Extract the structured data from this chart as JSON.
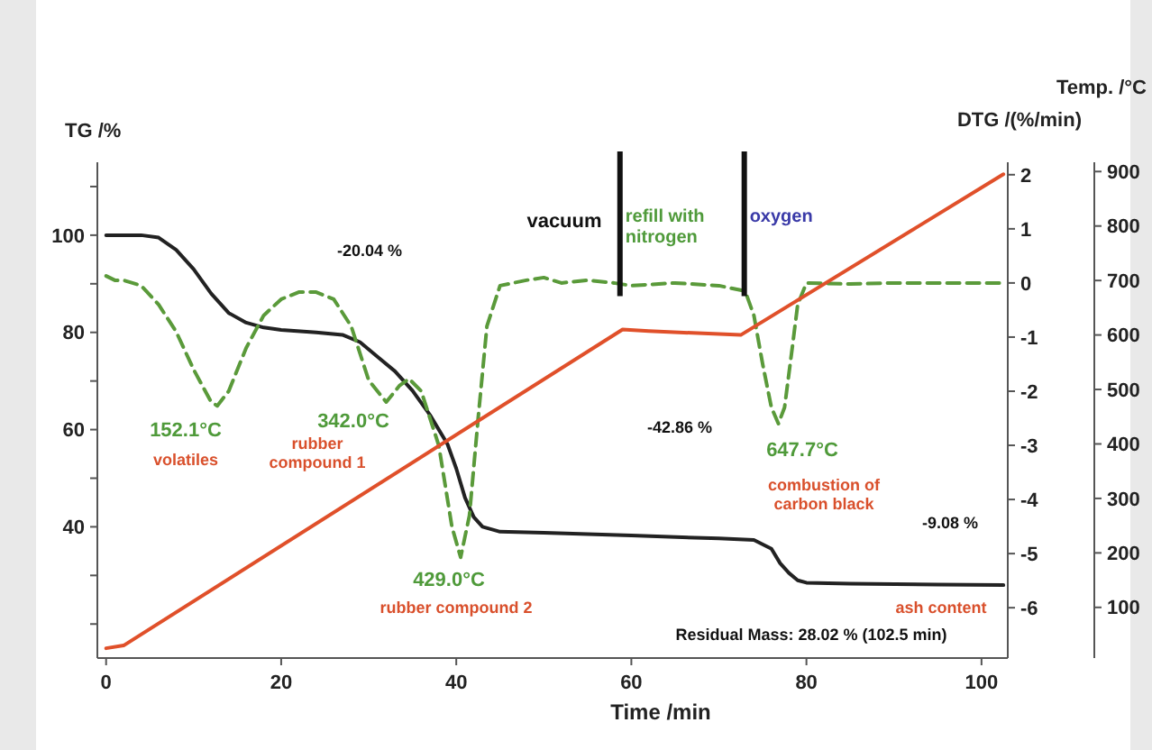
{
  "chart_data": {
    "type": "line",
    "xlabel": "Time /min",
    "ylabel": "TG /%",
    "y2label": "DTG /(%/min)",
    "y3label": "Temp. /°C",
    "xlim": [
      -1,
      103
    ],
    "xticks": [
      0,
      20,
      40,
      60,
      80,
      100
    ],
    "ylim": [
      13,
      115
    ],
    "yticks": [
      {
        "value": 20,
        "label": null
      },
      {
        "value": 30,
        "label": null
      },
      40,
      {
        "value": 50,
        "label": null
      },
      60,
      {
        "value": 70,
        "label": null
      },
      80,
      {
        "value": 90,
        "label": null
      },
      100,
      {
        "value": 110,
        "label": null
      }
    ],
    "y2lim": [
      -6.93,
      2.23
    ],
    "y2ticks": [
      -6,
      -5,
      -4,
      -3,
      -2,
      -1,
      0,
      1,
      2
    ],
    "y3lim": [
      7,
      917
    ],
    "y3ticks": [
      100,
      200,
      300,
      400,
      500,
      600,
      700,
      800,
      900
    ],
    "grid": false,
    "marker": "none",
    "series": [
      {
        "color": "#222222",
        "line_style": "solid",
        "x": [
          0,
          4,
          6,
          8,
          10,
          12,
          14,
          16,
          18,
          20,
          24,
          27,
          29,
          31,
          33,
          35,
          37,
          39,
          40,
          41,
          42,
          43,
          45,
          50,
          60,
          70,
          74,
          76,
          77,
          78,
          79,
          80,
          85,
          95,
          102.5
        ],
        "values": [
          100,
          100,
          99.5,
          97,
          93,
          88,
          84,
          82,
          81,
          80.5,
          80,
          79.5,
          78,
          75,
          72,
          68,
          63,
          57,
          52,
          46,
          42,
          40,
          39,
          38.8,
          38.2,
          37.6,
          37.3,
          35.5,
          32.5,
          30.5,
          29,
          28.5,
          28.3,
          28.1,
          28
        ]
      },
      {
        "color": "#5a9a3a",
        "line_style": "dashed",
        "axis": "y2",
        "x": [
          0,
          1,
          2,
          4,
          6,
          8,
          10,
          12,
          12.7,
          14,
          16,
          18,
          20,
          22,
          24,
          26,
          28,
          30,
          32,
          33.5,
          34.6,
          36,
          38,
          39.5,
          40.5,
          41.5,
          42.5,
          43.5,
          45,
          48,
          50,
          52,
          55,
          58,
          60,
          65,
          70,
          73,
          74,
          75,
          76,
          76.8,
          77.5,
          78.3,
          79,
          80,
          85,
          90,
          102.5
        ],
        "values": [
          0.13,
          0.05,
          0.05,
          -0.05,
          -0.4,
          -0.9,
          -1.6,
          -2.2,
          -2.27,
          -2,
          -1.2,
          -0.6,
          -0.3,
          -0.17,
          -0.17,
          -0.3,
          -0.8,
          -1.8,
          -2.2,
          -1.9,
          -1.77,
          -2,
          -3,
          -4.5,
          -5.07,
          -4.3,
          -2.5,
          -0.8,
          -0.05,
          0.05,
          0.1,
          0,
          0.05,
          0,
          -0.05,
          0,
          -0.05,
          -0.15,
          -0.6,
          -1.5,
          -2.3,
          -2.6,
          -2.3,
          -1.3,
          -0.4,
          0,
          -0.02,
          0,
          0
        ]
      },
      {
        "color": "#e0502a",
        "line_style": "solid",
        "axis": "y3",
        "x": [
          0,
          2,
          59,
          62,
          72.5,
          102.5
        ],
        "values": [
          25,
          30,
          610,
          607,
          600,
          895
        ]
      }
    ],
    "ref_lines": [
      {
        "axis": "x",
        "value": 58.7,
        "label": "refill with\nnitrogen",
        "color": "#111111"
      },
      {
        "axis": "x",
        "value": 72.9,
        "label": "oxygen",
        "color": "#111111"
      }
    ],
    "annotations": [
      "152.1°C",
      "volatiles",
      "342.0°C",
      "rubber\ncompound 1",
      "429.0°C",
      "rubber compound 2",
      "vacuum",
      "-20.04 %",
      "-42.86 %",
      "647.7°C",
      "combustion of\ncarbon black",
      "-9.08 %",
      "ash content",
      "Residual Mass: 28.02 % (102.5 min)"
    ]
  }
}
